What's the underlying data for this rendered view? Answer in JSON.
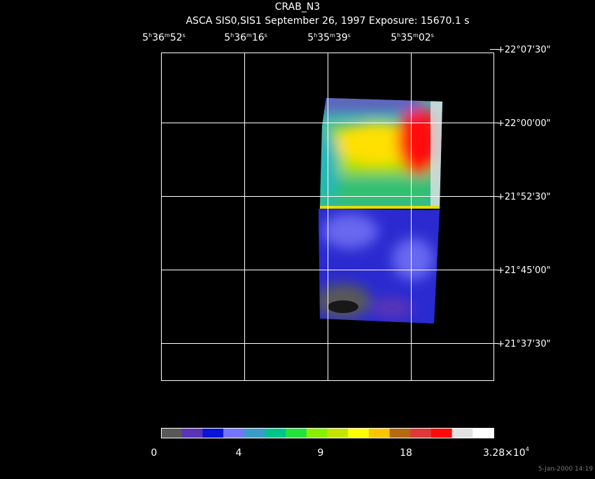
{
  "header": {
    "title": "CRAB_N3",
    "subtitle": "ASCA SIS0,SIS1 September 26, 1997 Exposure: 15670.1 s"
  },
  "ra_labels": [
    [
      "5",
      "h",
      "36",
      "m",
      "52",
      "s"
    ],
    [
      "5",
      "h",
      "36",
      "m",
      "16",
      "s"
    ],
    [
      "5",
      "h",
      "35",
      "m",
      "39",
      "s"
    ],
    [
      "5",
      "h",
      "35",
      "m",
      "02",
      "s"
    ]
  ],
  "dec_labels": [
    "+22°07'30\"",
    "+22°00'00\"",
    "+21°52'30\"",
    "+21°45'00\"",
    "+21°37'30\""
  ],
  "colorbar": {
    "colors": [
      "#585858",
      "#5a34b8",
      "#0a14d8",
      "#7474ff",
      "#3c9cc8",
      "#00c48a",
      "#24e23c",
      "#86f000",
      "#c4e400",
      "#ffff00",
      "#ffc400",
      "#b46a10",
      "#e03838",
      "#ff0a0a",
      "#e2e2e2",
      "#ffffff"
    ],
    "labels": [
      "0",
      "4",
      "9",
      "18"
    ],
    "max_label": [
      "3.28×10",
      "4"
    ]
  },
  "timestamp": "5-Jan-2000 14:19"
}
